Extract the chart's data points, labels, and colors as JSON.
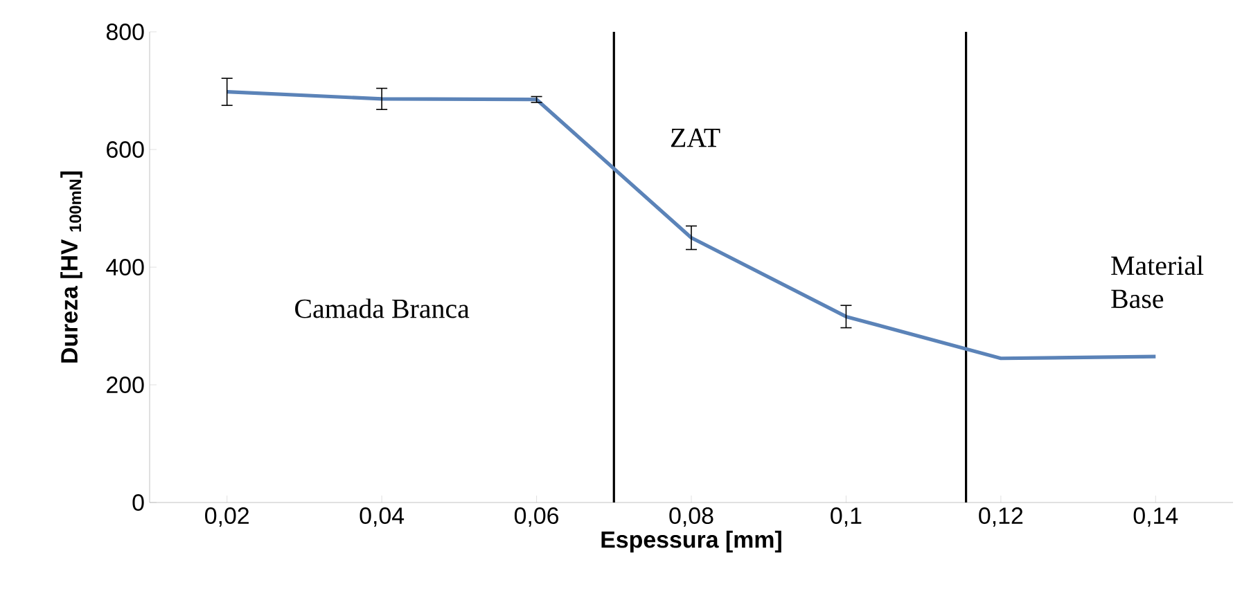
{
  "chart_data": {
    "type": "line",
    "xlabel": "Espessura [mm]",
    "ylabel": "Dureza [HV $_{100mN}$]",
    "x": [
      0.02,
      0.04,
      0.06,
      0.08,
      0.1,
      0.12,
      0.14
    ],
    "series": [
      {
        "color": "#5b83b8",
        "values": [
          698,
          686,
          685,
          450,
          316,
          245,
          248
        ],
        "errors": [
          23,
          18,
          5,
          20,
          19,
          null,
          null
        ]
      }
    ],
    "xlim": [
      0.01,
      0.15
    ],
    "xticks": [
      {
        "value": 0.02,
        "label": "0,02"
      },
      {
        "value": 0.04,
        "label": "0,04"
      },
      {
        "value": 0.06,
        "label": "0,06"
      },
      {
        "value": 0.08,
        "label": "0,08"
      },
      {
        "value": 0.1,
        "label": "0,1"
      },
      {
        "value": 0.12,
        "label": "0,12"
      },
      {
        "value": 0.14,
        "label": "0,14"
      }
    ],
    "ylim": [
      0,
      800
    ],
    "yticks": [
      0,
      200,
      400,
      600,
      800
    ],
    "ref_lines": [
      {
        "axis": "x",
        "value": 0.07,
        "color": "#000000"
      },
      {
        "axis": "x",
        "value": 0.1155,
        "color": "#000000"
      }
    ],
    "annotations": [
      "Camada Branca",
      "ZAT",
      "Material Base"
    ],
    "grid": false,
    "marker": "none",
    "line_style": "solid"
  }
}
